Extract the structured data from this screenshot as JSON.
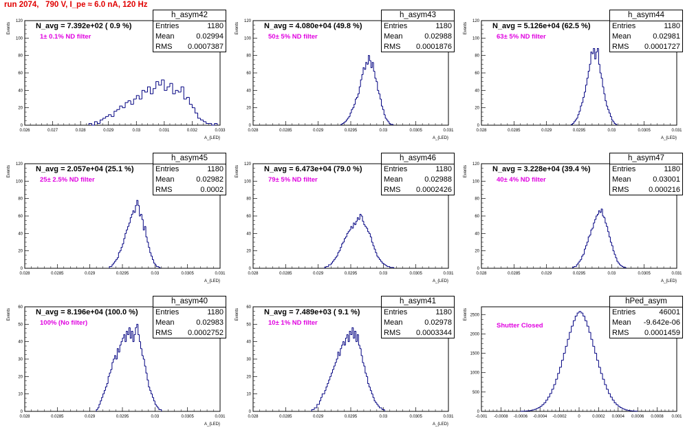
{
  "page": {
    "title": "run 2074,   790 V, I_pe ≈ 6.0 nA, 120 Hz"
  },
  "colors": {
    "title": "#e00000",
    "histogram_line": "#000080",
    "annotation": "#e000e0",
    "axis": "#000000"
  },
  "chart_data": [
    {
      "type": "bar",
      "name": "h_asym42",
      "navg_text": "N_avg = 7.392e+02 ( 0.9 %)",
      "note_text": "1± 0.1% ND filter",
      "stats": {
        "entries_label": "Entries",
        "entries": "1180",
        "mean_label": "Mean",
        "mean": "0.02994",
        "rms_label": "RMS",
        "rms": "0.0007387"
      },
      "ylabel": "Events",
      "xlabel": "A_{LED}",
      "xlim": [
        0.026,
        0.033
      ],
      "ylim": [
        0,
        120
      ],
      "yticks": [
        "0",
        "20",
        "40",
        "60",
        "80",
        "100",
        "120"
      ],
      "xticks": [
        "0.026",
        "0.027",
        "0.028",
        "0.029",
        "0.03",
        "0.031",
        "0.032",
        "0.033"
      ],
      "bin_start": 0.0283,
      "bin_width": 0.0001,
      "values": [
        2,
        0,
        4,
        2,
        6,
        8,
        10,
        12,
        10,
        16,
        18,
        22,
        20,
        26,
        28,
        24,
        30,
        34,
        30,
        40,
        38,
        44,
        36,
        42,
        50,
        46,
        52,
        40,
        44,
        48,
        36,
        40,
        38,
        44,
        30,
        32,
        24,
        20,
        14,
        8,
        6,
        4,
        2,
        2,
        0,
        2
      ]
    },
    {
      "type": "bar",
      "name": "h_asym43",
      "navg_text": "N_avg = 4.080e+04 (49.8 %)",
      "note_text": "50± 5% ND filter",
      "stats": {
        "entries_label": "Entries",
        "entries": "1180",
        "mean_label": "Mean",
        "mean": "0.02988",
        "rms_label": "RMS",
        "rms": "0.0001876"
      },
      "ylabel": "Events",
      "xlabel": "A_{LED}",
      "xlim": [
        0.028,
        0.031
      ],
      "ylim": [
        0,
        120
      ],
      "yticks": [
        "0",
        "20",
        "40",
        "60",
        "80",
        "100",
        "120"
      ],
      "xticks": [
        "0.028",
        "0.0285",
        "0.029",
        "0.0295",
        "0.03",
        "0.0305",
        "0.031"
      ],
      "bin_start": 0.02935,
      "bin_width": 2e-05,
      "values": [
        1,
        2,
        3,
        4,
        6,
        8,
        10,
        14,
        18,
        20,
        24,
        30,
        32,
        36,
        44,
        52,
        58,
        66,
        64,
        72,
        70,
        80,
        74,
        66,
        72,
        62,
        54,
        50,
        40,
        36,
        30,
        22,
        18,
        12,
        8,
        6,
        4,
        2,
        1,
        1
      ]
    },
    {
      "type": "bar",
      "name": "h_asym44",
      "navg_text": "N_avg = 5.126e+04 (62.5 %)",
      "note_text": "63± 5% ND filter",
      "stats": {
        "entries_label": "Entries",
        "entries": "1180",
        "mean_label": "Mean",
        "mean": "0.02981",
        "rms_label": "RMS",
        "rms": "0.0001727"
      },
      "ylabel": "Events",
      "xlabel": "A_{LED}",
      "xlim": [
        0.028,
        0.031
      ],
      "ylim": [
        0,
        120
      ],
      "yticks": [
        "0",
        "20",
        "40",
        "60",
        "80",
        "100",
        "120"
      ],
      "xticks": [
        "0.028",
        "0.0285",
        "0.029",
        "0.0295",
        "0.03",
        "0.0305",
        "0.031"
      ],
      "bin_start": 0.02938,
      "bin_width": 2e-05,
      "values": [
        1,
        2,
        4,
        6,
        8,
        12,
        16,
        22,
        26,
        32,
        38,
        46,
        54,
        62,
        70,
        84,
        82,
        88,
        76,
        84,
        88,
        70,
        60,
        54,
        44,
        36,
        28,
        22,
        18,
        14,
        10,
        6,
        4,
        2,
        1
      ]
    },
    {
      "type": "bar",
      "name": "h_asym45",
      "navg_text": "N_avg = 2.057e+04 (25.1 %)",
      "note_text": "25± 2.5% ND filter",
      "stats": {
        "entries_label": "Entries",
        "entries": "1180",
        "mean_label": "Mean",
        "mean": "0.02982",
        "rms_label": "RMS",
        "rms": "0.0002"
      },
      "ylabel": "Events",
      "xlabel": "A_{LED}",
      "xlim": [
        0.028,
        0.031
      ],
      "ylim": [
        0,
        120
      ],
      "yticks": [
        "0",
        "20",
        "40",
        "60",
        "80",
        "100",
        "120"
      ],
      "xticks": [
        "0.028",
        "0.0285",
        "0.029",
        "0.0295",
        "0.03",
        "0.0305",
        "0.031"
      ],
      "bin_start": 0.0293,
      "bin_width": 2e-05,
      "values": [
        2,
        2,
        4,
        6,
        8,
        10,
        12,
        18,
        20,
        24,
        28,
        34,
        40,
        44,
        48,
        52,
        58,
        62,
        66,
        64,
        72,
        78,
        72,
        60,
        62,
        56,
        44,
        48,
        36,
        30,
        24,
        18,
        14,
        10,
        6,
        4,
        2,
        2,
        1
      ]
    },
    {
      "type": "bar",
      "name": "h_asym46",
      "navg_text": "N_avg = 6.473e+04 (79.0 %)",
      "note_text": "79± 5% ND filter",
      "stats": {
        "entries_label": "Entries",
        "entries": "1180",
        "mean_label": "Mean",
        "mean": "0.02988",
        "rms_label": "RMS",
        "rms": "0.0002426"
      },
      "ylabel": "Events",
      "xlabel": "A_{LED}",
      "xlim": [
        0.028,
        0.031
      ],
      "ylim": [
        0,
        120
      ],
      "yticks": [
        "0",
        "20",
        "40",
        "60",
        "80",
        "100",
        "120"
      ],
      "xticks": [
        "0.028",
        "0.0285",
        "0.029",
        "0.0295",
        "0.03",
        "0.0305",
        "0.031"
      ],
      "bin_start": 0.0291,
      "bin_width": 2e-05,
      "values": [
        1,
        2,
        2,
        4,
        4,
        6,
        8,
        10,
        12,
        14,
        18,
        20,
        24,
        28,
        30,
        34,
        36,
        40,
        42,
        44,
        48,
        46,
        52,
        50,
        54,
        58,
        56,
        62,
        60,
        54,
        50,
        48,
        46,
        42,
        40,
        36,
        30,
        26,
        22,
        18,
        14,
        12,
        10,
        8,
        6,
        5,
        4,
        3,
        2,
        2,
        1,
        1,
        1
      ]
    },
    {
      "type": "bar",
      "name": "h_asym47",
      "navg_text": "N_avg = 3.228e+04 (39.4 %)",
      "note_text": "40± 4% ND filter",
      "stats": {
        "entries_label": "Entries",
        "entries": "1180",
        "mean_label": "Mean",
        "mean": "0.03001",
        "rms_label": "RMS",
        "rms": "0.000216"
      },
      "ylabel": "Events",
      "xlabel": "A_{LED}",
      "xlim": [
        0.028,
        0.031
      ],
      "ylim": [
        0,
        120
      ],
      "yticks": [
        "0",
        "20",
        "40",
        "60",
        "80",
        "100",
        "120"
      ],
      "xticks": [
        "0.028",
        "0.0285",
        "0.029",
        "0.0295",
        "0.03",
        "0.0305",
        "0.031"
      ],
      "bin_start": 0.0294,
      "bin_width": 2e-05,
      "values": [
        1,
        2,
        2,
        4,
        6,
        8,
        10,
        14,
        16,
        22,
        26,
        30,
        36,
        38,
        44,
        46,
        52,
        56,
        60,
        62,
        66,
        64,
        68,
        60,
        58,
        52,
        48,
        42,
        36,
        30,
        26,
        20,
        16,
        12,
        8,
        6,
        4,
        3,
        2,
        1,
        1
      ]
    },
    {
      "type": "bar",
      "name": "h_asym40",
      "navg_text": "N_avg = 8.196e+04 (100.0 %)",
      "note_text": "100% (No filter)",
      "stats": {
        "entries_label": "Entries",
        "entries": "1180",
        "mean_label": "Mean",
        "mean": "0.02983",
        "rms_label": "RMS",
        "rms": "0.0002752"
      },
      "ylabel": "Events",
      "xlabel": "A_{LED}",
      "xlim": [
        0.028,
        0.031
      ],
      "ylim": [
        0,
        60
      ],
      "yticks": [
        "0",
        "10",
        "20",
        "30",
        "40",
        "50",
        "60"
      ],
      "xticks": [
        "0.028",
        "0.0285",
        "0.029",
        "0.0295",
        "0.03",
        "0.0305",
        "0.031"
      ],
      "bin_start": 0.0291,
      "bin_width": 2e-05,
      "values": [
        1,
        2,
        4,
        6,
        8,
        10,
        12,
        14,
        16,
        20,
        22,
        24,
        28,
        30,
        32,
        30,
        36,
        34,
        38,
        40,
        42,
        44,
        40,
        46,
        44,
        48,
        42,
        46,
        40,
        44,
        48,
        50,
        44,
        40,
        36,
        32,
        30,
        26,
        22,
        18,
        14,
        12,
        10,
        8,
        6,
        4,
        3,
        2,
        1,
        1
      ]
    },
    {
      "type": "bar",
      "name": "h_asym41",
      "navg_text": "N_avg = 7.489e+03 ( 9.1 %)",
      "note_text": "10± 1% ND filter",
      "stats": {
        "entries_label": "Entries",
        "entries": "1180",
        "mean_label": "Mean",
        "mean": "0.02978",
        "rms_label": "RMS",
        "rms": "0.0003344"
      },
      "ylabel": "Events",
      "xlabel": "A_{LED}",
      "xlim": [
        0.028,
        0.031
      ],
      "ylim": [
        0,
        60
      ],
      "yticks": [
        "0",
        "10",
        "20",
        "30",
        "40",
        "50",
        "60"
      ],
      "xticks": [
        "0.028",
        "0.0285",
        "0.029",
        "0.0295",
        "0.03",
        "0.0305",
        "0.031"
      ],
      "bin_start": 0.0289,
      "bin_width": 2e-05,
      "values": [
        1,
        1,
        2,
        2,
        4,
        4,
        6,
        8,
        10,
        10,
        12,
        14,
        16,
        18,
        20,
        22,
        24,
        26,
        28,
        30,
        34,
        32,
        36,
        38,
        40,
        38,
        42,
        44,
        40,
        46,
        44,
        48,
        42,
        46,
        40,
        44,
        38,
        36,
        32,
        28,
        26,
        22,
        20,
        16,
        14,
        12,
        10,
        8,
        6,
        5,
        4,
        3,
        2,
        2,
        1,
        1
      ]
    },
    {
      "type": "bar",
      "name": "hPed_asym",
      "navg_text": "",
      "note_text": "Shutter Closed",
      "stats": {
        "entries_label": "Entries",
        "entries": "46001",
        "mean_label": "Mean",
        "mean": "-9.642e-06",
        "rms_label": "RMS",
        "rms": "0.0001459"
      },
      "ylabel": "Events",
      "xlabel": "",
      "xlim": [
        -0.001,
        0.001
      ],
      "ylim": [
        0,
        2700
      ],
      "yticks": [
        "0",
        "500",
        "1000",
        "1500",
        "2000",
        "2500"
      ],
      "ytick_values": [
        0,
        500,
        1000,
        1500,
        2000,
        2500
      ],
      "xticks": [
        "-0.001",
        "-0.0008",
        "-0.0006",
        "-0.0004",
        "-0.0002",
        "0",
        "0.0002",
        "0.0004",
        "0.0006",
        "0.0008",
        "0.001"
      ],
      "bin_start": -0.0006,
      "bin_width": 2e-05,
      "values": [
        2,
        4,
        6,
        10,
        16,
        24,
        36,
        50,
        70,
        96,
        128,
        170,
        220,
        290,
        370,
        460,
        570,
        690,
        830,
        980,
        1140,
        1320,
        1500,
        1680,
        1860,
        2040,
        2200,
        2340,
        2460,
        2540,
        2580,
        2540,
        2460,
        2340,
        2200,
        2040,
        1860,
        1680,
        1500,
        1320,
        1140,
        980,
        830,
        690,
        570,
        460,
        370,
        290,
        220,
        170,
        128,
        96,
        70,
        50,
        36,
        24,
        16,
        10,
        6,
        4
      ]
    }
  ]
}
